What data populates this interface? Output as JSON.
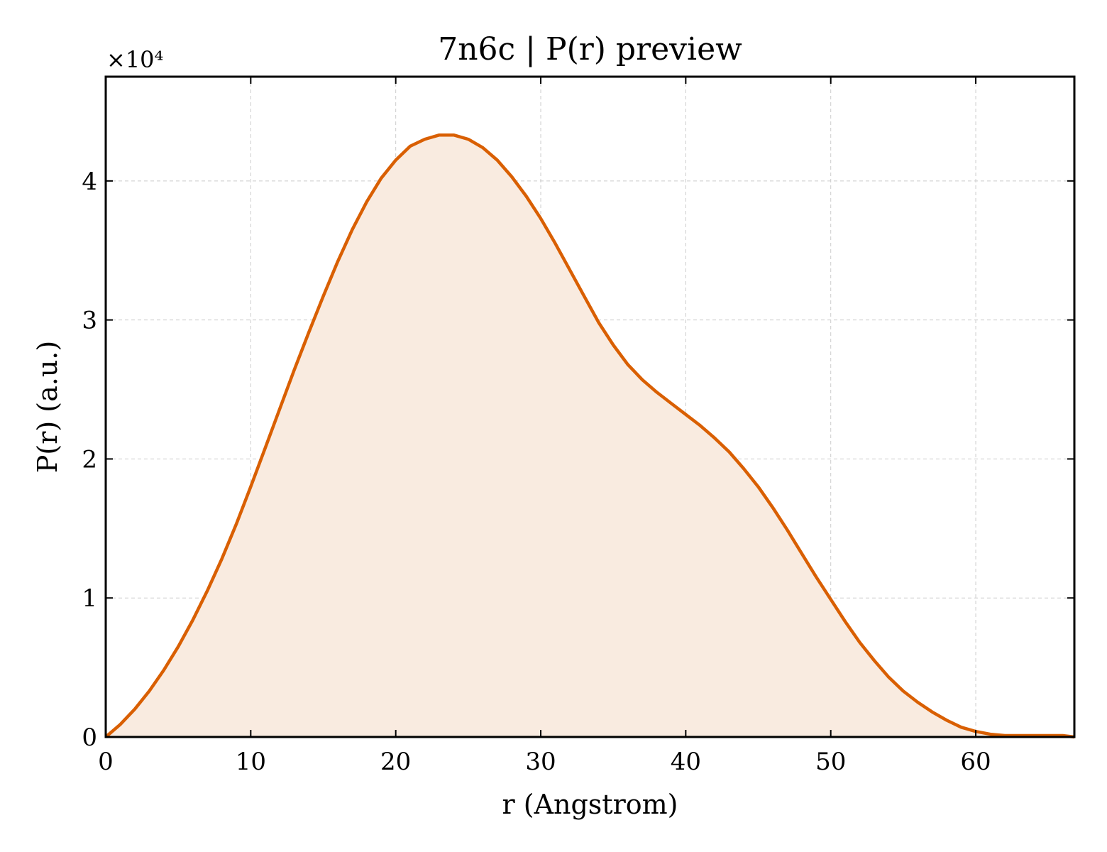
{
  "chart_data": {
    "type": "area",
    "title": "7n6c | P(r) preview",
    "xlabel": "r (Angstrom)",
    "ylabel": "P(r) (a.u.)",
    "y_offset_label": "×10⁴",
    "y_scale": 10000,
    "xlim": [
      0,
      66.8
    ],
    "ylim": [
      0,
      47500
    ],
    "xticks": [
      0,
      10,
      20,
      30,
      40,
      50,
      60
    ],
    "xtick_labels": [
      "0",
      "10",
      "20",
      "30",
      "40",
      "50",
      "60"
    ],
    "yticks": [
      0,
      10000,
      20000,
      30000,
      40000
    ],
    "ytick_labels": [
      "0",
      "1",
      "2",
      "3",
      "4"
    ],
    "grid": true,
    "colors": {
      "line": "#d95f02",
      "fill": "#f9ebe0"
    },
    "series": [
      {
        "x": [
          0,
          1,
          2,
          3,
          4,
          5,
          6,
          7,
          8,
          9,
          10,
          11,
          12,
          13,
          14,
          15,
          16,
          17,
          18,
          19,
          20,
          21,
          22,
          23,
          24,
          25,
          26,
          27,
          28,
          29,
          30,
          31,
          32,
          33,
          34,
          35,
          36,
          37,
          38,
          39,
          40,
          41,
          42,
          43,
          44,
          45,
          46,
          47,
          48,
          49,
          50,
          51,
          52,
          53,
          54,
          55,
          56,
          57,
          58,
          59,
          60,
          61,
          62,
          63,
          64,
          65,
          66,
          66.8
        ],
        "y": [
          0,
          900,
          2000,
          3300,
          4800,
          6500,
          8400,
          10500,
          12800,
          15300,
          18000,
          20800,
          23600,
          26400,
          29100,
          31700,
          34200,
          36500,
          38500,
          40200,
          41500,
          42500,
          43000,
          43300,
          43300,
          43000,
          42400,
          41500,
          40300,
          38900,
          37300,
          35500,
          33600,
          31700,
          29800,
          28200,
          26800,
          25700,
          24800,
          24000,
          23200,
          22400,
          21500,
          20500,
          19300,
          18000,
          16500,
          14900,
          13200,
          11500,
          9900,
          8300,
          6800,
          5500,
          4300,
          3300,
          2500,
          1800,
          1200,
          700,
          400,
          200,
          100,
          100,
          100,
          100,
          100,
          0
        ]
      }
    ]
  }
}
